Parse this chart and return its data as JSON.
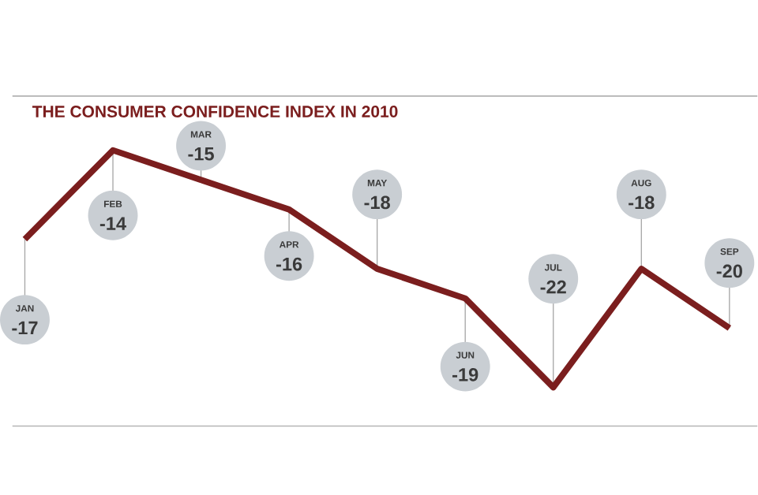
{
  "chart_data": {
    "type": "line",
    "title": "THE CONSUMER CONFIDENCE INDEX IN 2010",
    "categories": [
      "JAN",
      "FEB",
      "MAR",
      "APR",
      "MAY",
      "JUN",
      "JUL",
      "AUG",
      "SEP"
    ],
    "values": [
      -17,
      -14,
      -15,
      -16,
      -18,
      -19,
      -22,
      -18,
      -20
    ],
    "color": "#7b1e1e",
    "value_labels": [
      "-17",
      "-14",
      "-15",
      "-16",
      "-18",
      "-19",
      "-22",
      "-18",
      "-20"
    ]
  }
}
